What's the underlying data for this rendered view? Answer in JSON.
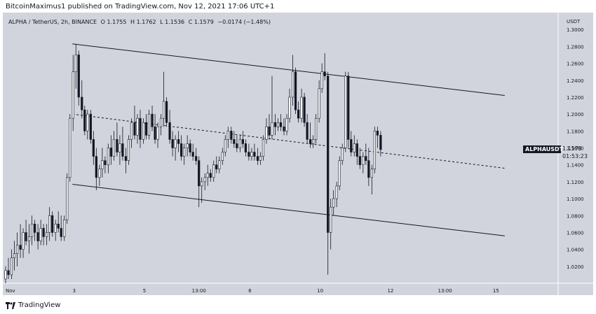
{
  "header": {
    "publisher_line": "BitcoinMaximus1 published on TradingView.com, Nov 12, 2021 17:06 UTC+1"
  },
  "legend": {
    "symbol": "ALPHA / TetherUS, 2h, BINANCE",
    "open": "O 1.1755",
    "high": "H 1.1762",
    "low": "L 1.1536",
    "close": "C 1.1579",
    "change": "−0.0174 (−1.48%)"
  },
  "price_axis": {
    "currency": "USDT",
    "last_label": "ALPHAUSDT",
    "last_price": "1.1579",
    "countdown": "01:53:23"
  },
  "footer": {
    "brand": "TradingView"
  },
  "colors": {
    "background": "#d1d4dc",
    "candle": "#131722",
    "channel": "#131722"
  },
  "chart_data": {
    "type": "candlestick",
    "symbol": "ALPHA / TetherUS",
    "interval": "2h",
    "exchange": "BINANCE",
    "ylim": [
      1.0,
      1.32
    ],
    "yticks": [
      "1.0200",
      "1.0400",
      "1.0600",
      "1.0800",
      "1.1000",
      "1.1200",
      "1.1400",
      "1.1600",
      "1.1800",
      "1.2000",
      "1.2200",
      "1.2400",
      "1.2600",
      "1.2800",
      "1.3000"
    ],
    "xticks": [
      {
        "label": "Nov",
        "x": 0
      },
      {
        "label": "3",
        "x": 1.95
      },
      {
        "label": "5",
        "x": 3.95
      },
      {
        "label": "13:00",
        "x": 5.5
      },
      {
        "label": "8",
        "x": 6.95
      },
      {
        "label": "10",
        "x": 8.95
      },
      {
        "label": "12",
        "x": 10.95
      },
      {
        "label": "13:00",
        "x": 12.5
      },
      {
        "label": "15",
        "x": 13.95
      }
    ],
    "xlim": [
      0,
      15.6
    ],
    "candles": [
      [
        0.0,
        1.005,
        1.02,
        1.0,
        1.015
      ],
      [
        0.08,
        1.015,
        1.03,
        1.005,
        1.01
      ],
      [
        0.17,
        1.01,
        1.04,
        1.005,
        1.03
      ],
      [
        0.25,
        1.03,
        1.05,
        1.015,
        1.035
      ],
      [
        0.33,
        1.035,
        1.06,
        1.02,
        1.045
      ],
      [
        0.42,
        1.045,
        1.07,
        1.03,
        1.04
      ],
      [
        0.5,
        1.04,
        1.065,
        1.03,
        1.06
      ],
      [
        0.58,
        1.06,
        1.075,
        1.045,
        1.05
      ],
      [
        0.67,
        1.05,
        1.07,
        1.035,
        1.055
      ],
      [
        0.75,
        1.055,
        1.08,
        1.045,
        1.07
      ],
      [
        0.83,
        1.07,
        1.075,
        1.05,
        1.06
      ],
      [
        0.92,
        1.06,
        1.07,
        1.04,
        1.05
      ],
      [
        1.0,
        1.05,
        1.075,
        1.045,
        1.065
      ],
      [
        1.08,
        1.065,
        1.07,
        1.045,
        1.055
      ],
      [
        1.17,
        1.055,
        1.07,
        1.045,
        1.06
      ],
      [
        1.25,
        1.06,
        1.09,
        1.05,
        1.08
      ],
      [
        1.33,
        1.08,
        1.085,
        1.055,
        1.06
      ],
      [
        1.42,
        1.06,
        1.075,
        1.05,
        1.07
      ],
      [
        1.5,
        1.07,
        1.085,
        1.06,
        1.065
      ],
      [
        1.58,
        1.065,
        1.08,
        1.05,
        1.055
      ],
      [
        1.67,
        1.055,
        1.08,
        1.05,
        1.075
      ],
      [
        1.75,
        1.075,
        1.13,
        1.07,
        1.125
      ],
      [
        1.83,
        1.125,
        1.2,
        1.12,
        1.195
      ],
      [
        1.92,
        1.195,
        1.27,
        1.18,
        1.25
      ],
      [
        2.0,
        1.25,
        1.283,
        1.23,
        1.27
      ],
      [
        2.08,
        1.27,
        1.275,
        1.21,
        1.22
      ],
      [
        2.17,
        1.22,
        1.24,
        1.195,
        1.205
      ],
      [
        2.25,
        1.205,
        1.21,
        1.175,
        1.18
      ],
      [
        2.33,
        1.18,
        1.205,
        1.17,
        1.2
      ],
      [
        2.42,
        1.2,
        1.205,
        1.165,
        1.17
      ],
      [
        2.5,
        1.17,
        1.18,
        1.14,
        1.15
      ],
      [
        2.58,
        1.15,
        1.16,
        1.11,
        1.125
      ],
      [
        2.67,
        1.125,
        1.14,
        1.115,
        1.135
      ],
      [
        2.75,
        1.135,
        1.16,
        1.125,
        1.145
      ],
      [
        2.83,
        1.145,
        1.15,
        1.13,
        1.14
      ],
      [
        2.92,
        1.14,
        1.165,
        1.13,
        1.16
      ],
      [
        3.0,
        1.16,
        1.175,
        1.14,
        1.15
      ],
      [
        3.08,
        1.15,
        1.18,
        1.145,
        1.17
      ],
      [
        3.17,
        1.17,
        1.19,
        1.15,
        1.155
      ],
      [
        3.25,
        1.155,
        1.175,
        1.14,
        1.165
      ],
      [
        3.33,
        1.165,
        1.185,
        1.145,
        1.15
      ],
      [
        3.42,
        1.15,
        1.16,
        1.13,
        1.145
      ],
      [
        3.5,
        1.145,
        1.175,
        1.14,
        1.17
      ],
      [
        3.58,
        1.17,
        1.195,
        1.16,
        1.19
      ],
      [
        3.67,
        1.19,
        1.21,
        1.17,
        1.175
      ],
      [
        3.75,
        1.175,
        1.2,
        1.165,
        1.195
      ],
      [
        3.83,
        1.195,
        1.205,
        1.16,
        1.17
      ],
      [
        3.92,
        1.17,
        1.195,
        1.165,
        1.19
      ],
      [
        4.0,
        1.19,
        1.2,
        1.17,
        1.175
      ],
      [
        4.08,
        1.175,
        1.205,
        1.17,
        1.2
      ],
      [
        4.17,
        1.2,
        1.21,
        1.18,
        1.185
      ],
      [
        4.25,
        1.185,
        1.2,
        1.165,
        1.17
      ],
      [
        4.33,
        1.17,
        1.19,
        1.16,
        1.185
      ],
      [
        4.42,
        1.185,
        1.2,
        1.175,
        1.195
      ],
      [
        4.5,
        1.195,
        1.25,
        1.185,
        1.215
      ],
      [
        4.58,
        1.215,
        1.22,
        1.185,
        1.19
      ],
      [
        4.67,
        1.19,
        1.205,
        1.165,
        1.17
      ],
      [
        4.75,
        1.17,
        1.18,
        1.15,
        1.16
      ],
      [
        4.83,
        1.16,
        1.175,
        1.145,
        1.17
      ],
      [
        4.92,
        1.17,
        1.18,
        1.155,
        1.165
      ],
      [
        5.0,
        1.165,
        1.175,
        1.145,
        1.15
      ],
      [
        5.08,
        1.15,
        1.165,
        1.14,
        1.16
      ],
      [
        5.17,
        1.16,
        1.175,
        1.15,
        1.165
      ],
      [
        5.25,
        1.165,
        1.17,
        1.15,
        1.155
      ],
      [
        5.33,
        1.155,
        1.165,
        1.145,
        1.15
      ],
      [
        5.42,
        1.15,
        1.16,
        1.14,
        1.145
      ],
      [
        5.5,
        1.145,
        1.15,
        1.09,
        1.115
      ],
      [
        5.58,
        1.115,
        1.125,
        1.095,
        1.12
      ],
      [
        5.67,
        1.12,
        1.13,
        1.11,
        1.125
      ],
      [
        5.75,
        1.125,
        1.14,
        1.115,
        1.13
      ],
      [
        5.83,
        1.13,
        1.135,
        1.12,
        1.125
      ],
      [
        5.92,
        1.125,
        1.145,
        1.12,
        1.14
      ],
      [
        6.0,
        1.14,
        1.15,
        1.13,
        1.135
      ],
      [
        6.08,
        1.135,
        1.15,
        1.13,
        1.145
      ],
      [
        6.17,
        1.145,
        1.16,
        1.14,
        1.155
      ],
      [
        6.25,
        1.155,
        1.175,
        1.15,
        1.17
      ],
      [
        6.33,
        1.17,
        1.185,
        1.16,
        1.18
      ],
      [
        6.42,
        1.18,
        1.185,
        1.165,
        1.17
      ],
      [
        6.5,
        1.17,
        1.18,
        1.16,
        1.165
      ],
      [
        6.58,
        1.165,
        1.175,
        1.155,
        1.16
      ],
      [
        6.67,
        1.16,
        1.175,
        1.155,
        1.17
      ],
      [
        6.75,
        1.17,
        1.18,
        1.16,
        1.165
      ],
      [
        6.83,
        1.165,
        1.17,
        1.15,
        1.155
      ],
      [
        6.92,
        1.155,
        1.165,
        1.145,
        1.15
      ],
      [
        7.0,
        1.15,
        1.16,
        1.145,
        1.155
      ],
      [
        7.08,
        1.155,
        1.165,
        1.145,
        1.15
      ],
      [
        7.17,
        1.15,
        1.16,
        1.14,
        1.145
      ],
      [
        7.25,
        1.145,
        1.155,
        1.14,
        1.15
      ],
      [
        7.33,
        1.15,
        1.175,
        1.145,
        1.17
      ],
      [
        7.42,
        1.17,
        1.195,
        1.165,
        1.185
      ],
      [
        7.5,
        1.185,
        1.2,
        1.17,
        1.175
      ],
      [
        7.58,
        1.175,
        1.245,
        1.17,
        1.19
      ],
      [
        7.67,
        1.19,
        1.2,
        1.175,
        1.185
      ],
      [
        7.75,
        1.185,
        1.195,
        1.18,
        1.19
      ],
      [
        7.83,
        1.19,
        1.2,
        1.18,
        1.185
      ],
      [
        7.92,
        1.185,
        1.195,
        1.175,
        1.18
      ],
      [
        8.0,
        1.18,
        1.2,
        1.175,
        1.195
      ],
      [
        8.08,
        1.195,
        1.23,
        1.19,
        1.22
      ],
      [
        8.17,
        1.22,
        1.27,
        1.21,
        1.25
      ],
      [
        8.25,
        1.25,
        1.255,
        1.2,
        1.205
      ],
      [
        8.33,
        1.205,
        1.215,
        1.19,
        1.195
      ],
      [
        8.42,
        1.195,
        1.23,
        1.19,
        1.22
      ],
      [
        8.5,
        1.22,
        1.225,
        1.185,
        1.19
      ],
      [
        8.58,
        1.19,
        1.2,
        1.165,
        1.17
      ],
      [
        8.67,
        1.17,
        1.19,
        1.16,
        1.165
      ],
      [
        8.75,
        1.165,
        1.175,
        1.16,
        1.17
      ],
      [
        8.83,
        1.17,
        1.2,
        1.165,
        1.195
      ],
      [
        8.92,
        1.195,
        1.24,
        1.19,
        1.23
      ],
      [
        9.0,
        1.23,
        1.26,
        1.225,
        1.25
      ],
      [
        9.08,
        1.25,
        1.272,
        1.24,
        1.245
      ],
      [
        9.17,
        1.245,
        1.25,
        1.01,
        1.06
      ],
      [
        9.25,
        1.06,
        1.1,
        1.04,
        1.09
      ],
      [
        9.33,
        1.09,
        1.11,
        1.08,
        1.1
      ],
      [
        9.42,
        1.1,
        1.12,
        1.09,
        1.115
      ],
      [
        9.5,
        1.115,
        1.15,
        1.11,
        1.145
      ],
      [
        9.58,
        1.145,
        1.165,
        1.14,
        1.16
      ],
      [
        9.67,
        1.16,
        1.25,
        1.155,
        1.245
      ],
      [
        9.75,
        1.245,
        1.25,
        1.16,
        1.17
      ],
      [
        9.83,
        1.17,
        1.18,
        1.15,
        1.155
      ],
      [
        9.92,
        1.155,
        1.175,
        1.15,
        1.165
      ],
      [
        10.0,
        1.165,
        1.17,
        1.14,
        1.15
      ],
      [
        10.08,
        1.15,
        1.16,
        1.135,
        1.14
      ],
      [
        10.17,
        1.14,
        1.155,
        1.13,
        1.15
      ],
      [
        10.25,
        1.15,
        1.165,
        1.14,
        1.145
      ],
      [
        10.33,
        1.145,
        1.16,
        1.115,
        1.125
      ],
      [
        10.42,
        1.125,
        1.14,
        1.105,
        1.135
      ],
      [
        10.5,
        1.135,
        1.185,
        1.13,
        1.18
      ],
      [
        10.58,
        1.18,
        1.185,
        1.16,
        1.175
      ],
      [
        10.67,
        1.175,
        1.18,
        1.15,
        1.158
      ]
    ],
    "channel": {
      "upper": [
        [
          1.9,
          1.283
        ],
        [
          14.2,
          1.222
        ]
      ],
      "middle": [
        [
          1.9,
          1.2
        ],
        [
          14.2,
          1.136
        ]
      ],
      "lower": [
        [
          1.9,
          1.117
        ],
        [
          14.2,
          1.056
        ]
      ]
    },
    "last_price": 1.1579
  }
}
